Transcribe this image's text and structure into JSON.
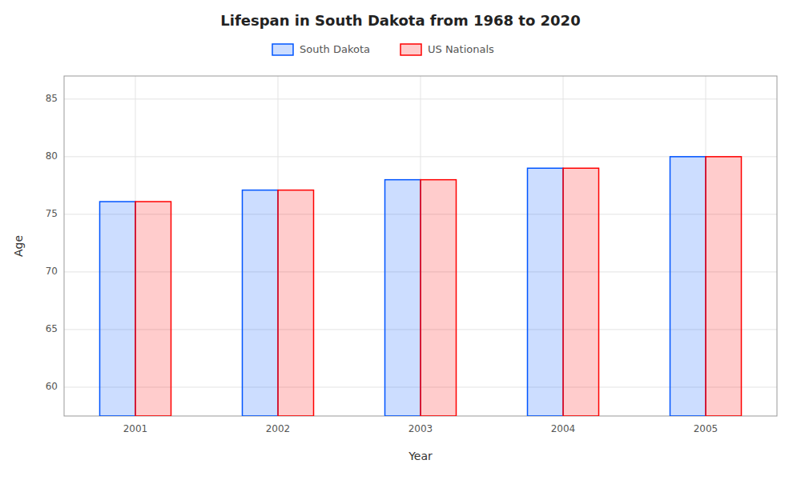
{
  "chart_data": {
    "type": "bar",
    "title": "Lifespan in South Dakota from 1968 to 2020",
    "x_label": "Year",
    "y_label": "Age",
    "categories": [
      "2001",
      "2002",
      "2003",
      "2004",
      "2005"
    ],
    "series": [
      {
        "name": "South Dakota",
        "color": "#0055ff",
        "values": [
          76.1,
          77.1,
          78.0,
          79.0,
          80.0
        ]
      },
      {
        "name": "US Nationals",
        "color": "#ff0000",
        "values": [
          76.1,
          77.1,
          78.0,
          79.0,
          80.0
        ]
      }
    ],
    "ylim": [
      57.5,
      87
    ],
    "yticks": [
      60,
      65,
      70,
      75,
      80,
      85
    ],
    "grid": true,
    "legend": "top"
  }
}
